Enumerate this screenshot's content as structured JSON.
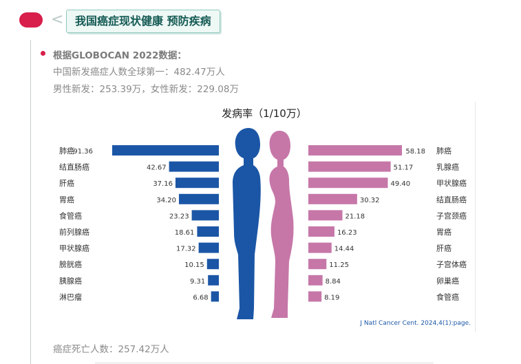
{
  "header": {
    "title": "我国癌症现状健康 预防疾病"
  },
  "body": {
    "lines": [
      "根据GLOBOCAN 2022数据：",
      "中国新发癌症人数全球第一：482.47万人",
      "男性新发：253.39万，女性新发：229.08万"
    ],
    "footer_line": "癌症死亡人数：257.42万人"
  },
  "colors": {
    "accent": "#d81e4a",
    "male": "#1b56a6",
    "female": "#c677a8"
  },
  "chart_data": {
    "type": "bar",
    "title": "发病率（1/10万）",
    "source": "J Natl Cancer Cent. 2024,4(1):page.",
    "series": [
      {
        "categories": [
          "肺癌",
          "结直肠癌",
          "肝癌",
          "胃癌",
          "食管癌",
          "前列腺癌",
          "甲状腺癌",
          "膀胱癌",
          "胰腺癌",
          "淋巴瘤"
        ],
        "values": [
          91.36,
          42.67,
          37.16,
          34.2,
          23.23,
          18.61,
          17.32,
          10.15,
          9.31,
          6.68
        ],
        "labels": [
          "91.36",
          "42.67",
          "37.16",
          "34.20",
          "23.23",
          "18.61",
          "17.32",
          "10.15",
          "9.31",
          "6.68"
        ]
      },
      {
        "categories": [
          "肺癌",
          "乳腺癌",
          "甲状腺癌",
          "结直肠癌",
          "子宫颈癌",
          "胃癌",
          "肝癌",
          "子宫体癌",
          "卵巢癌",
          "食管癌"
        ],
        "values": [
          58.18,
          51.17,
          49.4,
          30.32,
          21.18,
          16.23,
          14.44,
          11.25,
          8.84,
          8.19
        ],
        "labels": [
          "58.18",
          "51.17",
          "49.40",
          "30.32",
          "21.18",
          "16.23",
          "14.44",
          "11.25",
          "8.84",
          "8.19"
        ]
      }
    ]
  }
}
